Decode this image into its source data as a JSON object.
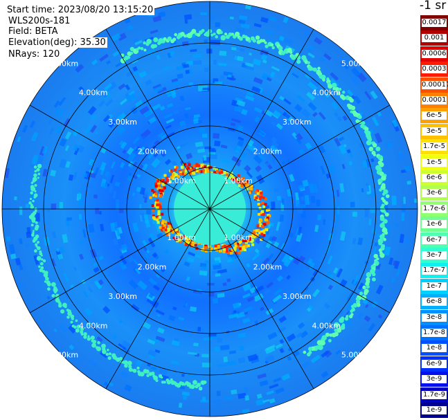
{
  "info": {
    "start_time": "Start time: 2023/08/20 13:15:20",
    "site": "WLS200s-181",
    "field": "Field: BETA",
    "elevation": "Elevation(deg): 35.30",
    "nrays": "NRays: 120"
  },
  "colorbar": {
    "unit": "-1 sr",
    "labels": [
      "0.0017",
      "0.001",
      "0.0006",
      "0.0003",
      "0.00017",
      "0.0001",
      "6e-5",
      "3e-5",
      "1.7e-5",
      "1e-5",
      "6e-6",
      "3e-6",
      "1.7e-6",
      "1e-6",
      "6e-7",
      "3e-7",
      "1.7e-7",
      "1e-7",
      "6e-8",
      "3e-8",
      "1.7e-8",
      "1e-8",
      "6e-9",
      "3e-9",
      "1.7e-9",
      "1e-9"
    ],
    "colors": [
      "#800000",
      "#b00000",
      "#e00000",
      "#ff1a00",
      "#ff5000",
      "#ff8000",
      "#ffa000",
      "#ffc000",
      "#ffe000",
      "#f0ff10",
      "#d0ff30",
      "#b0ff50",
      "#90ff70",
      "#70ff90",
      "#50ffb0",
      "#30ffd0",
      "#10f0f0",
      "#00d0ff",
      "#00b0ff",
      "#0090ff",
      "#0070ff",
      "#0050ff",
      "#0030ff",
      "#0010f0",
      "#0000c0",
      "#000090"
    ]
  },
  "range_rings": [
    "1.00km",
    "2.00km",
    "3.00km",
    "4.00km",
    "5.00km"
  ],
  "colors": {
    "background_field": "#1060ff",
    "near_field": "#30e0e0",
    "high_return": "#ff3000"
  }
}
